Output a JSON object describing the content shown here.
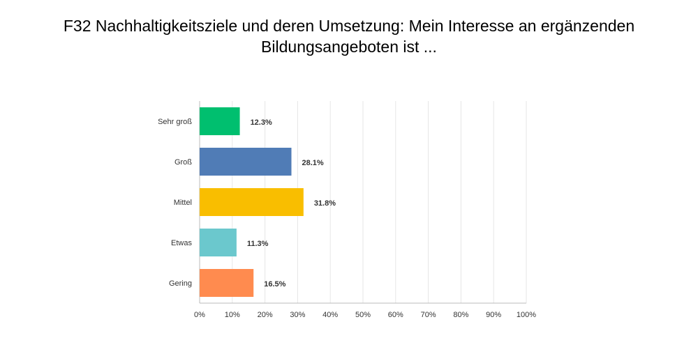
{
  "title_line1": "F32 Nachhaltigkeitsziele und deren Umsetzung: Mein Interesse an ergänzenden",
  "title_line2": "Bildungsangeboten ist ...",
  "chart_data": {
    "type": "bar",
    "orientation": "horizontal",
    "categories": [
      "Sehr groß",
      "Groß",
      "Mittel",
      "Etwas",
      "Gering"
    ],
    "values": [
      12.3,
      28.1,
      31.8,
      11.3,
      16.5
    ],
    "value_labels": [
      "12.3%",
      "28.1%",
      "31.8%",
      "11.3%",
      "16.5%"
    ],
    "colors": [
      "#00bf6f",
      "#507cb6",
      "#f9be00",
      "#6bc8cd",
      "#ff8b4f"
    ],
    "xlim": [
      0,
      100
    ],
    "xticks": [
      0,
      10,
      20,
      30,
      40,
      50,
      60,
      70,
      80,
      90,
      100
    ],
    "xtick_labels": [
      "0%",
      "10%",
      "20%",
      "30%",
      "40%",
      "50%",
      "60%",
      "70%",
      "80%",
      "90%",
      "100%"
    ],
    "grid": true
  }
}
